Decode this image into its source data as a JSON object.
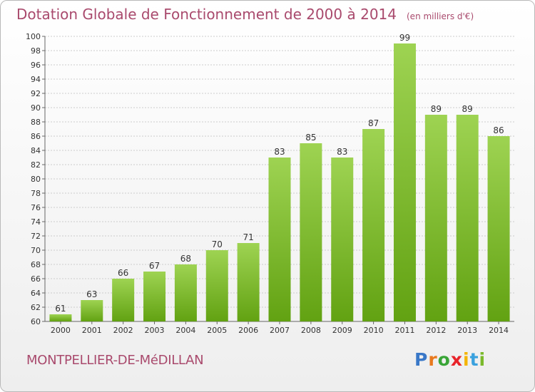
{
  "header": {
    "title": "Dotation Globale de Fonctionnement de 2000 à 2014",
    "unit": "(en milliers d'€)"
  },
  "footer": {
    "commune": "MONTPELLIER-DE-MéDILLAN",
    "logo_letters": [
      "P",
      "r",
      "o",
      "x",
      "i",
      "t",
      "i"
    ],
    "logo_colors": [
      "#3a78c8",
      "#e8791e",
      "#39a537",
      "#e8232a",
      "#f4b400",
      "#3aa1de",
      "#7ab92a"
    ]
  },
  "colors": {
    "title": "#a94a6d",
    "bar_light": "#9ed352",
    "bar_dark": "#62a212",
    "grid": "#cccccc"
  },
  "chart_data": {
    "type": "bar",
    "title": "Dotation Globale de Fonctionnement de 2000 à 2014",
    "subtitle": "(en milliers d'€)",
    "categories": [
      "2000",
      "2001",
      "2002",
      "2003",
      "2004",
      "2005",
      "2006",
      "2007",
      "2008",
      "2009",
      "2010",
      "2011",
      "2012",
      "2013",
      "2014"
    ],
    "values": [
      61,
      63,
      66,
      67,
      68,
      70,
      71,
      83,
      85,
      83,
      87,
      99,
      89,
      89,
      86
    ],
    "ylim": [
      60,
      100
    ],
    "yticks": [
      60,
      62,
      64,
      66,
      68,
      70,
      72,
      74,
      76,
      78,
      80,
      82,
      84,
      86,
      88,
      90,
      92,
      94,
      96,
      98,
      100
    ],
    "grid": true,
    "xlabel": "",
    "ylabel": ""
  }
}
